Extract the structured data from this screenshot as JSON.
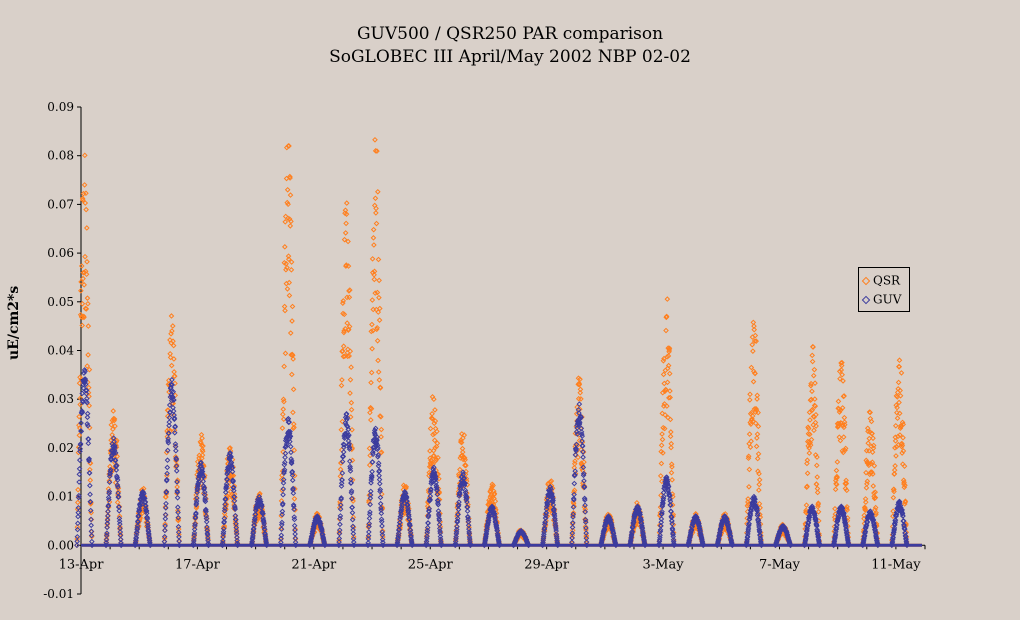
{
  "chart_data": {
    "type": "scatter",
    "title": "GUV500 / QSR250 PAR comparison",
    "subtitle": "SoGLOBEC III April/May 2002  NBP 02-02",
    "xlabel": "",
    "ylabel": "uE/cm2*s",
    "ylim": [
      -0.01,
      0.09
    ],
    "yticks": [
      "-0.01",
      "0.00",
      "0.01",
      "0.02",
      "0.03",
      "0.04",
      "0.05",
      "0.06",
      "0.07",
      "0.08",
      "0.09"
    ],
    "x_start": "2002-04-13",
    "x_end": "2002-05-12",
    "xticks": [
      {
        "date": "2002-04-13",
        "label": "13-Apr"
      },
      {
        "date": "2002-04-17",
        "label": "17-Apr"
      },
      {
        "date": "2002-04-21",
        "label": "21-Apr"
      },
      {
        "date": "2002-04-25",
        "label": "25-Apr"
      },
      {
        "date": "2002-04-29",
        "label": "29-Apr"
      },
      {
        "date": "2002-05-03",
        "label": "3-May"
      },
      {
        "date": "2002-05-07",
        "label": "7-May"
      },
      {
        "date": "2002-05-11",
        "label": "11-May"
      }
    ],
    "legend_position": "right",
    "series": [
      {
        "name": "QSR",
        "color": "#ff7f1e",
        "daily_peak": [
          {
            "date": "2002-04-13",
            "peak": 0.074
          },
          {
            "date": "2002-04-14",
            "peak": 0.026
          },
          {
            "date": "2002-04-15",
            "peak": 0.011
          },
          {
            "date": "2002-04-16",
            "peak": 0.044
          },
          {
            "date": "2002-04-17",
            "peak": 0.021
          },
          {
            "date": "2002-04-18",
            "peak": 0.02
          },
          {
            "date": "2002-04-19",
            "peak": 0.01
          },
          {
            "date": "2002-04-20",
            "peak": 0.082
          },
          {
            "date": "2002-04-21",
            "peak": 0.006
          },
          {
            "date": "2002-04-22",
            "peak": 0.068
          },
          {
            "date": "2002-04-23",
            "peak": 0.081
          },
          {
            "date": "2002-04-24",
            "peak": 0.012
          },
          {
            "date": "2002-04-25",
            "peak": 0.03
          },
          {
            "date": "2002-04-26",
            "peak": 0.022
          },
          {
            "date": "2002-04-27",
            "peak": 0.012
          },
          {
            "date": "2002-04-28",
            "peak": 0.003
          },
          {
            "date": "2002-04-29",
            "peak": 0.013
          },
          {
            "date": "2002-04-30",
            "peak": 0.033
          },
          {
            "date": "2002-05-01",
            "peak": 0.006
          },
          {
            "date": "2002-05-02",
            "peak": 0.008
          },
          {
            "date": "2002-05-03",
            "peak": 0.047
          },
          {
            "date": "2002-05-04",
            "peak": 0.006
          },
          {
            "date": "2002-05-05",
            "peak": 0.006
          },
          {
            "date": "2002-05-06",
            "peak": 0.045
          },
          {
            "date": "2002-05-07",
            "peak": 0.004
          },
          {
            "date": "2002-05-08",
            "peak": 0.039
          },
          {
            "date": "2002-05-09",
            "peak": 0.036
          },
          {
            "date": "2002-05-10",
            "peak": 0.026
          },
          {
            "date": "2002-05-11",
            "peak": 0.038
          }
        ]
      },
      {
        "name": "GUV",
        "color": "#3c3c9e",
        "daily_peak": [
          {
            "date": "2002-04-13",
            "peak": 0.036
          },
          {
            "date": "2002-04-14",
            "peak": 0.022
          },
          {
            "date": "2002-04-15",
            "peak": 0.011
          },
          {
            "date": "2002-04-16",
            "peak": 0.034
          },
          {
            "date": "2002-04-17",
            "peak": 0.017
          },
          {
            "date": "2002-04-18",
            "peak": 0.019
          },
          {
            "date": "2002-04-19",
            "peak": 0.01
          },
          {
            "date": "2002-04-20",
            "peak": 0.026
          },
          {
            "date": "2002-04-21",
            "peak": 0.006
          },
          {
            "date": "2002-04-22",
            "peak": 0.027
          },
          {
            "date": "2002-04-23",
            "peak": 0.024
          },
          {
            "date": "2002-04-24",
            "peak": 0.011
          },
          {
            "date": "2002-04-25",
            "peak": 0.016
          },
          {
            "date": "2002-04-26",
            "peak": 0.015
          },
          {
            "date": "2002-04-27",
            "peak": 0.008
          },
          {
            "date": "2002-04-28",
            "peak": 0.003
          },
          {
            "date": "2002-04-29",
            "peak": 0.012
          },
          {
            "date": "2002-04-30",
            "peak": 0.029
          },
          {
            "date": "2002-05-01",
            "peak": 0.006
          },
          {
            "date": "2002-05-02",
            "peak": 0.008
          },
          {
            "date": "2002-05-03",
            "peak": 0.014
          },
          {
            "date": "2002-05-04",
            "peak": 0.006
          },
          {
            "date": "2002-05-05",
            "peak": 0.006
          },
          {
            "date": "2002-05-06",
            "peak": 0.01
          },
          {
            "date": "2002-05-07",
            "peak": 0.004
          },
          {
            "date": "2002-05-08",
            "peak": 0.008
          },
          {
            "date": "2002-05-09",
            "peak": 0.008
          },
          {
            "date": "2002-05-10",
            "peak": 0.007
          },
          {
            "date": "2002-05-11",
            "peak": 0.009
          }
        ]
      }
    ]
  }
}
